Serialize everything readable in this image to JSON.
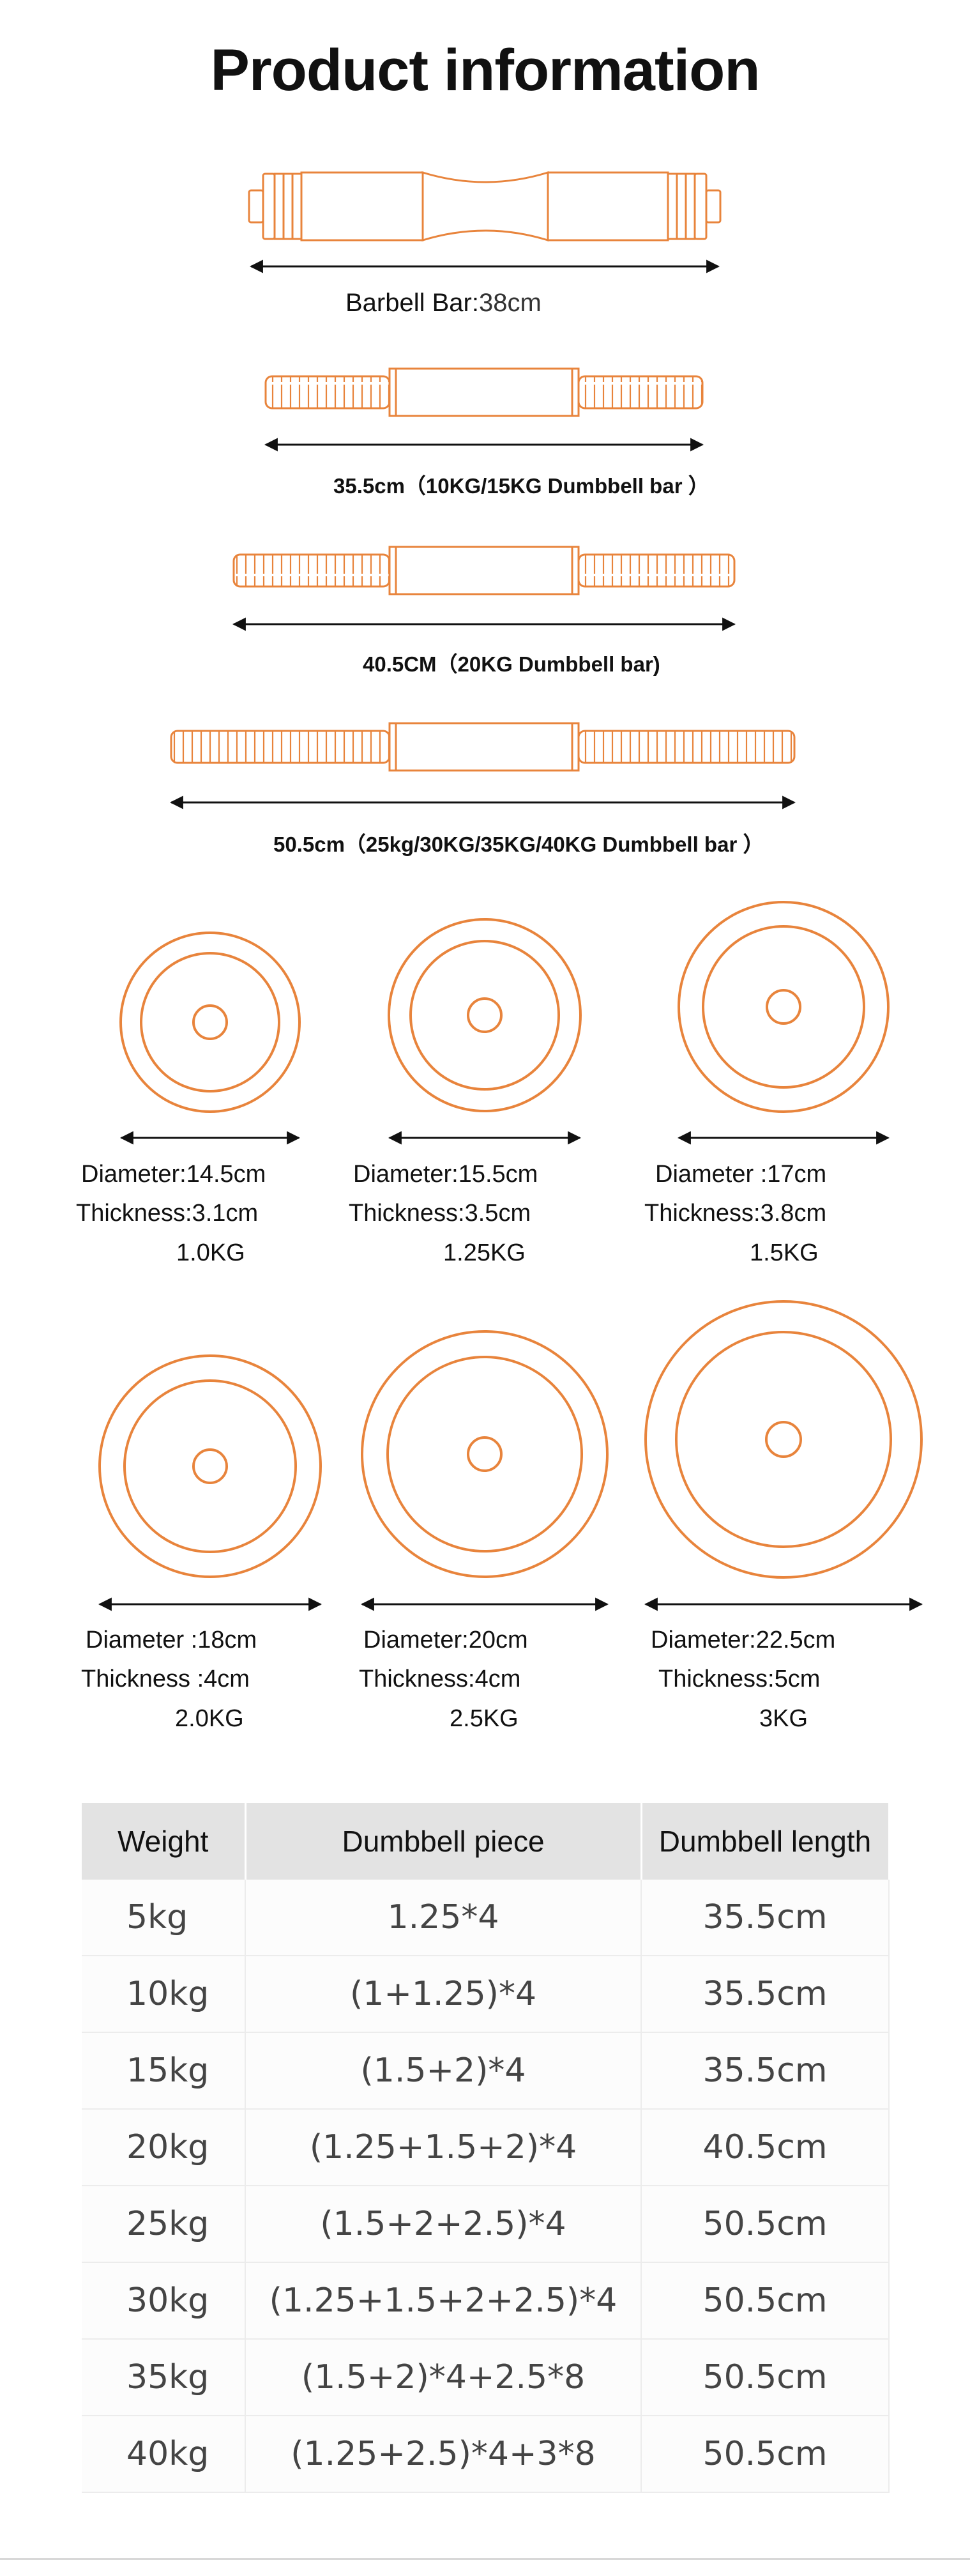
{
  "title": "Product information",
  "colors": {
    "accent": "#e8843c",
    "arrow": "#111111",
    "header_bg": "#e3e3e3"
  },
  "bars": {
    "barbell": {
      "label": "Barbell Bar:",
      "length": "38cm"
    },
    "b35": "35.5cm（10KG/15KG  Dumbbell  bar ）",
    "b40": "40.5CM（20KG  Dumbbell bar)",
    "b50": "50.5cm（25kg/30KG/35KG/40KG  Dumbbell bar ）"
  },
  "plates": [
    {
      "diameter": "Diameter:14.5cm",
      "thickness": "Thickness:3.1cm",
      "weight": "1.0KG"
    },
    {
      "diameter": "Diameter:15.5cm",
      "thickness": "Thickness:3.5cm",
      "weight": "1.25KG"
    },
    {
      "diameter": "Diameter :17cm",
      "thickness": "Thickness:3.8cm",
      "weight": "1.5KG"
    },
    {
      "diameter": "Diameter :18cm",
      "thickness": "Thickness :4cm",
      "weight": "2.0KG"
    },
    {
      "diameter": "Diameter:20cm",
      "thickness": "Thickness:4cm",
      "weight": "2.5KG"
    },
    {
      "diameter": "Diameter:22.5cm",
      "thickness": "Thickness:5cm",
      "weight": "3KG"
    }
  ],
  "table": {
    "headers": [
      "Weight",
      "Dumbbell piece",
      "Dumbbell length"
    ],
    "rows": [
      [
        "5kg",
        "1.25*4",
        "35.5cm"
      ],
      [
        "10kg",
        "(1+1.25)*4",
        "35.5cm"
      ],
      [
        "15kg",
        "(1.5+2)*4",
        "35.5cm"
      ],
      [
        "20kg",
        "(1.25+1.5+2)*4",
        "40.5cm"
      ],
      [
        "25kg",
        "(1.5+2+2.5)*4",
        "50.5cm"
      ],
      [
        "30kg",
        "(1.25+1.5+2+2.5)*4",
        "50.5cm"
      ],
      [
        "35kg",
        "(1.5+2)*4+2.5*8",
        "50.5cm"
      ],
      [
        "40kg",
        "(1.25+2.5)*4+3*8",
        "50.5cm"
      ]
    ]
  }
}
